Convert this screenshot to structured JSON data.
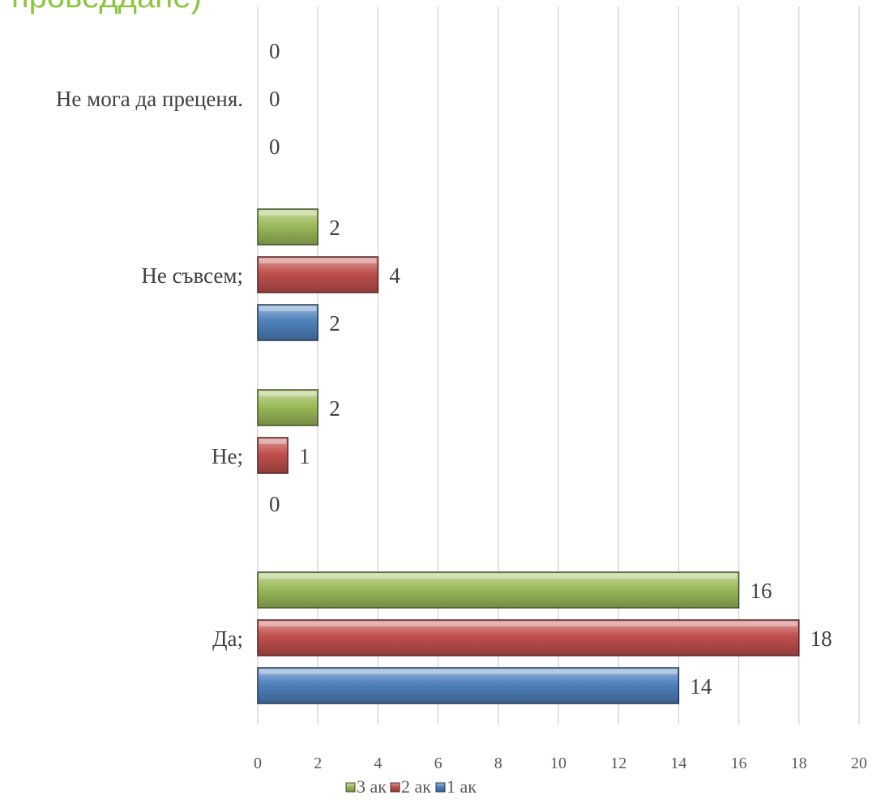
{
  "chart_data": {
    "type": "bar",
    "orientation": "horizontal",
    "title": "проведдане)",
    "categories": [
      "Да;",
      "Не;",
      "Не съвсем;",
      "Не мога да преценя."
    ],
    "series": [
      {
        "name": "1 ак",
        "color": "#4f81bd",
        "values": [
          14,
          0,
          2,
          0
        ]
      },
      {
        "name": "2 ак",
        "color": "#c0504d",
        "values": [
          18,
          1,
          4,
          0
        ]
      },
      {
        "name": "3 ак",
        "color": "#9bbb59",
        "values": [
          16,
          2,
          2,
          0
        ]
      }
    ],
    "xlim": [
      0,
      20
    ],
    "xticks": [
      0,
      2,
      4,
      6,
      8,
      10,
      12,
      14,
      16,
      18,
      20
    ],
    "grid": "vertical",
    "legend": {
      "position": "bottom",
      "order": [
        "3 ак",
        "2 ак",
        "1 ак"
      ]
    },
    "data_labels": true
  }
}
